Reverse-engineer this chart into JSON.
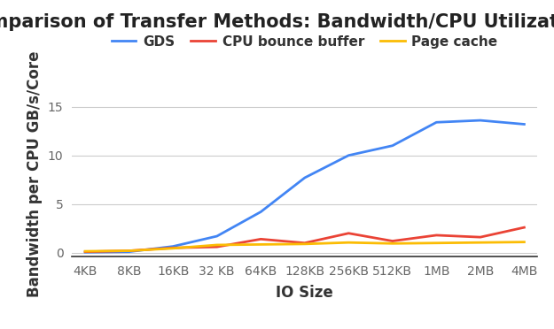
{
  "title": "Comparison of Transfer Methods: Bandwidth/CPU Utilization",
  "xlabel": "IO Size",
  "ylabel": "Bandwidth per CPU GB/s/Core",
  "x_labels": [
    "4KB",
    "8KB",
    "16KB",
    "32 KB",
    "64KB",
    "128KB",
    "256KB",
    "512KB",
    "1MB",
    "2MB",
    "4MB"
  ],
  "gds": [
    0.05,
    0.1,
    0.65,
    1.7,
    4.2,
    7.7,
    10.0,
    11.0,
    13.4,
    13.6,
    13.2
  ],
  "cpu_bounce": [
    0.1,
    0.2,
    0.5,
    0.6,
    1.4,
    1.0,
    2.0,
    1.2,
    1.8,
    1.6,
    2.6
  ],
  "page_cache": [
    0.15,
    0.2,
    0.45,
    0.8,
    0.85,
    0.9,
    1.05,
    0.95,
    1.0,
    1.05,
    1.1
  ],
  "gds_color": "#4285f4",
  "cpu_bounce_color": "#ea4335",
  "page_cache_color": "#fbbc04",
  "ylim": [
    -0.4,
    16.5
  ],
  "yticks": [
    0,
    5,
    10,
    15
  ],
  "background_color": "#ffffff",
  "grid_color": "#cccccc",
  "title_fontsize": 15,
  "axis_label_fontsize": 12,
  "tick_fontsize": 10,
  "legend_fontsize": 11,
  "line_width": 2.0
}
